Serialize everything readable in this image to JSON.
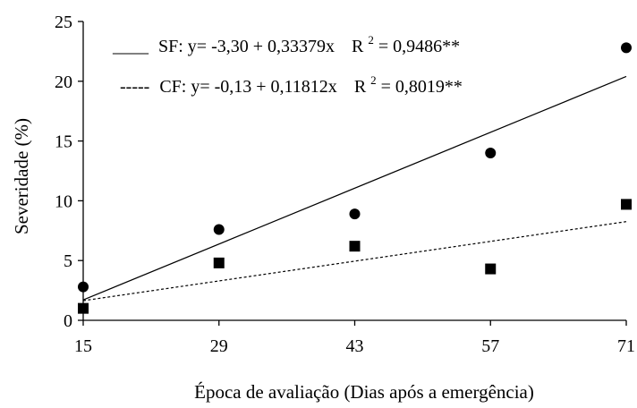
{
  "chart_data": {
    "type": "scatter",
    "title": "",
    "xlabel": "Época de avaliação (Dias após a emergência)",
    "ylabel": "Severidade (%)",
    "x_ticks": [
      15,
      29,
      43,
      57,
      71
    ],
    "y_ticks": [
      0,
      5,
      10,
      15,
      20,
      25
    ],
    "xlim": [
      15,
      71
    ],
    "ylim": [
      0,
      25
    ],
    "grid": false,
    "legend_position": "top-left",
    "series": [
      {
        "name": "SF",
        "marker": "circle",
        "line_style": "solid",
        "x": [
          15,
          29,
          43,
          57,
          71
        ],
        "y": [
          2.8,
          7.6,
          8.9,
          14.0,
          22.8
        ],
        "fit": {
          "intercept": -3.3,
          "slope": 0.33379
        },
        "legend_prefix": "____",
        "legend_equation": "SF: y= -3,30 + 0,33379x",
        "legend_r2_value": "= 0,9486**"
      },
      {
        "name": "CF",
        "marker": "square",
        "line_style": "dashed",
        "x": [
          15,
          29,
          43,
          57,
          71
        ],
        "y": [
          1.0,
          4.8,
          6.2,
          4.3,
          9.7
        ],
        "fit": {
          "intercept": -0.13,
          "slope": 0.11812
        },
        "legend_prefix": "-----",
        "legend_equation": "CF: y= -0,13 + 0,11812x",
        "legend_r2_value": "= 0,8019**"
      }
    ],
    "r2_symbol": "R",
    "r2_exponent": "2"
  }
}
